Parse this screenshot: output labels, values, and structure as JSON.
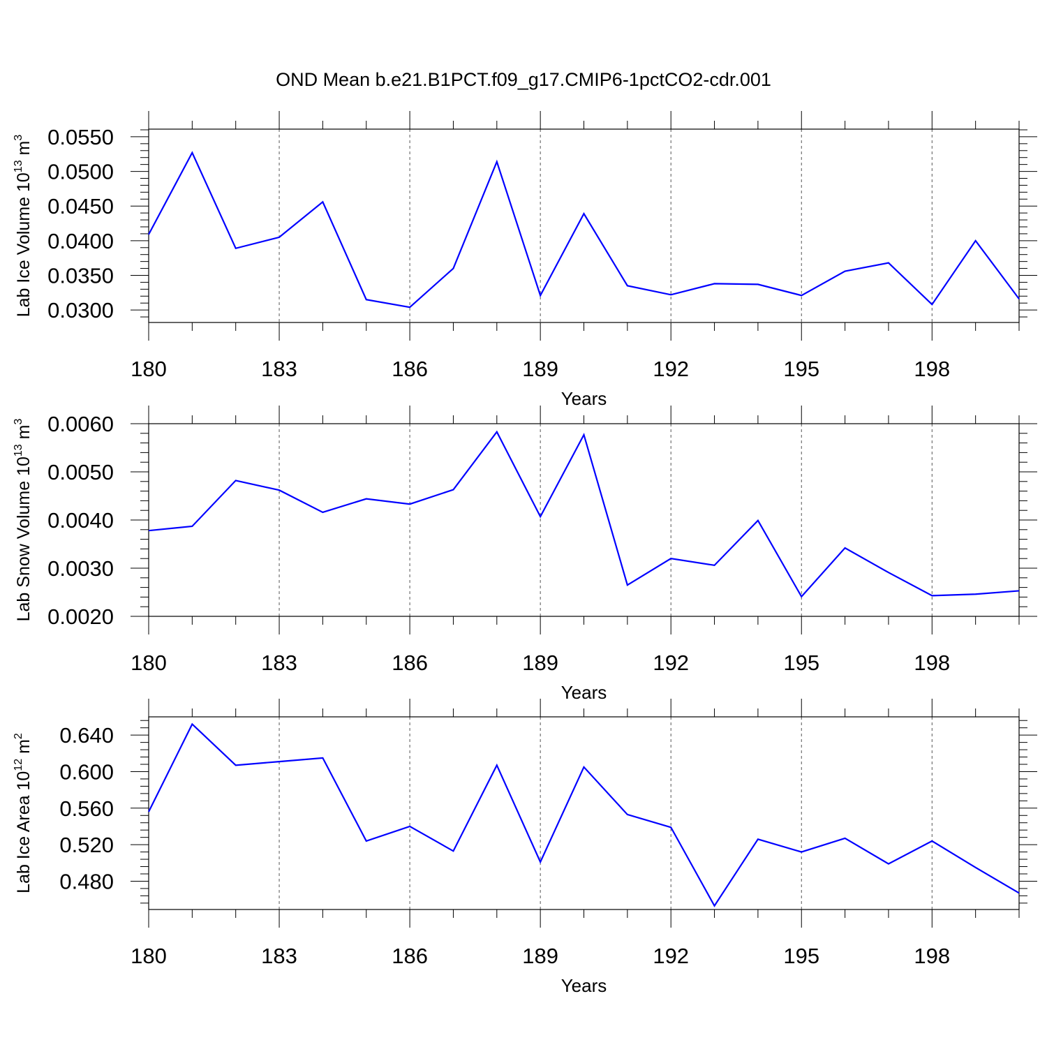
{
  "title": "OND Mean b.e21.B1PCT.f09_g17.CMIP6-1pctCO2-cdr.001",
  "line_color": "#0000ff",
  "chart_data": [
    {
      "type": "line",
      "xlabel": "Years",
      "ylabel": "Lab Ice Volume 10",
      "ylabel_exp": "13",
      "ylabel_unit": " m",
      "ylabel_unit_exp": "3",
      "xlim": [
        180,
        200
      ],
      "ylim": [
        0.0282,
        0.0561
      ],
      "xticks": [
        "180",
        "183",
        "186",
        "189",
        "192",
        "195",
        "198"
      ],
      "yticks": [
        "0.0300",
        "0.0350",
        "0.0400",
        "0.0450",
        "0.0500",
        "0.0550"
      ],
      "x": [
        180,
        181,
        182,
        183,
        184,
        185,
        186,
        187,
        188,
        189,
        190,
        191,
        192,
        193,
        194,
        195,
        196,
        197,
        198,
        199,
        200
      ],
      "values": [
        0.0409,
        0.0527,
        0.0389,
        0.0405,
        0.0456,
        0.0315,
        0.0304,
        0.036,
        0.0514,
        0.0321,
        0.0439,
        0.0335,
        0.0322,
        0.0338,
        0.0337,
        0.0321,
        0.0356,
        0.0368,
        0.0308,
        0.04,
        0.0316
      ]
    },
    {
      "type": "line",
      "xlabel": "Years",
      "ylabel": "Lab Snow Volume 10",
      "ylabel_exp": "13",
      "ylabel_unit": " m",
      "ylabel_unit_exp": "3",
      "xlim": [
        180,
        200
      ],
      "ylim": [
        0.002,
        0.006
      ],
      "xticks": [
        "180",
        "183",
        "186",
        "189",
        "192",
        "195",
        "198"
      ],
      "yticks": [
        "0.0020",
        "0.0030",
        "0.0040",
        "0.0050",
        "0.0060"
      ],
      "x": [
        180,
        181,
        182,
        183,
        184,
        185,
        186,
        187,
        188,
        189,
        190,
        191,
        192,
        193,
        194,
        195,
        196,
        197,
        198,
        199,
        200
      ],
      "values": [
        0.00378,
        0.00387,
        0.00482,
        0.00462,
        0.00416,
        0.00444,
        0.00433,
        0.00463,
        0.00583,
        0.00407,
        0.00577,
        0.00265,
        0.0032,
        0.00306,
        0.00399,
        0.00241,
        0.00342,
        0.00291,
        0.00243,
        0.00246,
        0.00253
      ]
    },
    {
      "type": "line",
      "xlabel": "Years",
      "ylabel": "Lab Ice Area 10",
      "ylabel_exp": "12",
      "ylabel_unit": " m",
      "ylabel_unit_exp": "2",
      "xlim": [
        180,
        200
      ],
      "ylim": [
        0.449,
        0.66
      ],
      "xticks": [
        "180",
        "183",
        "186",
        "189",
        "192",
        "195",
        "198"
      ],
      "yticks": [
        "0.480",
        "0.520",
        "0.560",
        "0.600",
        "0.640"
      ],
      "x": [
        180,
        181,
        182,
        183,
        184,
        185,
        186,
        187,
        188,
        189,
        190,
        191,
        192,
        193,
        194,
        195,
        196,
        197,
        198,
        199,
        200
      ],
      "values": [
        0.556,
        0.652,
        0.607,
        0.611,
        0.615,
        0.524,
        0.54,
        0.513,
        0.607,
        0.501,
        0.605,
        0.553,
        0.539,
        0.453,
        0.526,
        0.512,
        0.527,
        0.499,
        0.524,
        0.495,
        0.467
      ]
    }
  ]
}
